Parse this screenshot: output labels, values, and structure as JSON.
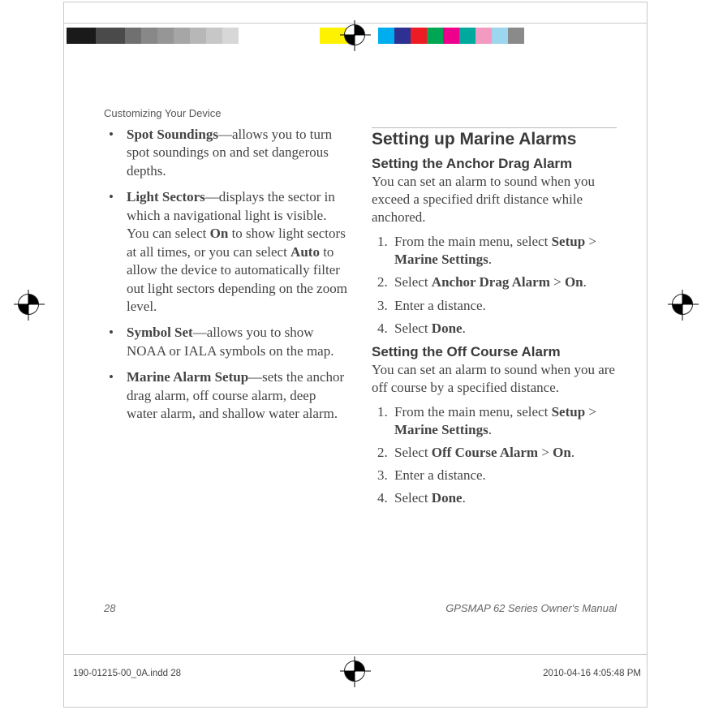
{
  "colorbar": {
    "left_swatches": [
      {
        "color": "#1a1a1a",
        "w": 36
      },
      {
        "color": "#4a4a4a",
        "w": 36
      },
      {
        "color": "#707070",
        "w": 20
      },
      {
        "color": "#888888",
        "w": 20
      },
      {
        "color": "#969696",
        "w": 20
      },
      {
        "color": "#a6a6a6",
        "w": 20
      },
      {
        "color": "#b7b7b7",
        "w": 20
      },
      {
        "color": "#c7c7c7",
        "w": 20
      },
      {
        "color": "#d7d7d7",
        "w": 20
      },
      {
        "color": "#ffffff",
        "w": 20
      }
    ],
    "right_swatches": [
      {
        "color": "#fff200",
        "w": 36
      },
      {
        "color": "#ffffff",
        "w": 36
      },
      {
        "color": "#00aeef",
        "w": 20
      },
      {
        "color": "#2e3192",
        "w": 20
      },
      {
        "color": "#ed1c24",
        "w": 20
      },
      {
        "color": "#00a651",
        "w": 20
      },
      {
        "color": "#ec008c",
        "w": 20
      },
      {
        "color": "#00a99d",
        "w": 20
      },
      {
        "color": "#f49ac1",
        "w": 20
      },
      {
        "color": "#9cd7ef",
        "w": 20
      },
      {
        "color": "#8a8a8a",
        "w": 20
      }
    ]
  },
  "header": {
    "section_label": "Customizing Your Device"
  },
  "left_column": {
    "bullets": [
      {
        "term": "Spot Soundings",
        "text": "—allows you to turn spot soundings on and set dangerous depths."
      },
      {
        "term": "Light Sectors",
        "text_parts": [
          "—displays the sector in which a navigational light is visible. You can select ",
          {
            "bold": "On"
          },
          " to show light sectors at all times, or you can select ",
          {
            "bold": "Auto"
          },
          " to allow the device to automatically filter out light sectors depending on the zoom level."
        ]
      },
      {
        "term": "Symbol Set",
        "text": "—allows you to show NOAA or IALA symbols on the map."
      },
      {
        "term": "Marine Alarm Setup",
        "text": "—sets the anchor drag alarm, off course alarm, deep water alarm, and shallow water alarm."
      }
    ]
  },
  "right_column": {
    "heading": "Setting up Marine Alarms",
    "sections": [
      {
        "sub_heading": "Setting the Anchor Drag Alarm",
        "intro": "You can set an alarm to sound when you exceed a specified drift distance while anchored.",
        "steps": [
          {
            "parts": [
              "From the main menu, select ",
              {
                "bold": "Setup"
              },
              " > ",
              {
                "bold": "Marine Settings"
              },
              "."
            ]
          },
          {
            "parts": [
              "Select ",
              {
                "bold": "Anchor Drag Alarm"
              },
              " > ",
              {
                "bold": "On"
              },
              "."
            ]
          },
          {
            "parts": [
              "Enter a distance."
            ]
          },
          {
            "parts": [
              "Select ",
              {
                "bold": "Done"
              },
              "."
            ]
          }
        ]
      },
      {
        "sub_heading": "Setting the Off Course Alarm",
        "intro": "You can set an alarm to sound when you are off course by a specified distance.",
        "steps": [
          {
            "parts": [
              "From the main menu, select ",
              {
                "bold": "Setup"
              },
              " > ",
              {
                "bold": "Marine Settings"
              },
              "."
            ]
          },
          {
            "parts": [
              "Select ",
              {
                "bold": "Off Course Alarm"
              },
              " > ",
              {
                "bold": "On"
              },
              "."
            ]
          },
          {
            "parts": [
              "Enter a distance."
            ]
          },
          {
            "parts": [
              "Select ",
              {
                "bold": "Done"
              },
              "."
            ]
          }
        ]
      }
    ]
  },
  "footer": {
    "page_num": "28",
    "doc_title": "GPSMAP 62 Series Owner's Manual"
  },
  "slugline": {
    "file": "190-01215-00_0A.indd   28",
    "timestamp": "2010-04-16   4:05:48 PM"
  }
}
